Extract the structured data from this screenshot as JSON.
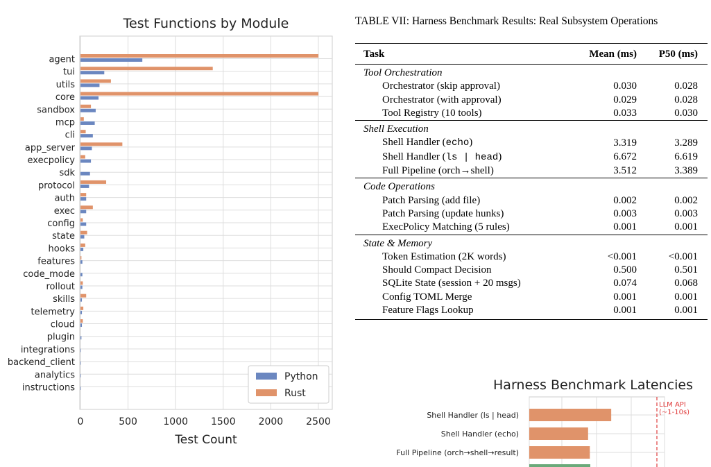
{
  "chart_data": [
    {
      "type": "bar",
      "title": "Test Functions by Module",
      "xlabel": "Test Count",
      "ylabel": "",
      "xlim": [
        0,
        2620
      ],
      "xticks": [
        0,
        500,
        1000,
        1500,
        2000,
        2500
      ],
      "grid": true,
      "legend_position": "bottom-right",
      "categories": [
        "agent",
        "tui",
        "utils",
        "core",
        "sandbox",
        "mcp",
        "cli",
        "app_server",
        "execpolicy",
        "sdk",
        "protocol",
        "auth",
        "exec",
        "config",
        "state",
        "hooks",
        "features",
        "code_mode",
        "rollout",
        "skills",
        "telemetry",
        "cloud",
        "plugin",
        "integrations",
        "backend_client",
        "analytics",
        "instructions"
      ],
      "series": [
        {
          "name": "Python",
          "color": "#6b87c0",
          "values": [
            650,
            250,
            200,
            190,
            160,
            150,
            130,
            120,
            110,
            100,
            90,
            60,
            60,
            60,
            40,
            30,
            20,
            20,
            20,
            15,
            15,
            15,
            10,
            5,
            5,
            5,
            5
          ]
        },
        {
          "name": "Rust",
          "color": "#e0936a",
          "values": [
            2500,
            1390,
            320,
            2500,
            110,
            35,
            55,
            440,
            50,
            0,
            270,
            60,
            130,
            25,
            70,
            50,
            10,
            0,
            25,
            60,
            30,
            25,
            0,
            0,
            0,
            0,
            0
          ]
        }
      ]
    },
    {
      "type": "bar",
      "title": "Harness Benchmark Latencies",
      "categories": [
        "Shell Handler (ls | head)",
        "Shell Handler (echo)",
        "Full Pipeline (orch→shell→result)"
      ],
      "series": [
        {
          "name": "",
          "color": "#e0936a",
          "values": [
            6.672,
            3.319,
            3.512
          ]
        }
      ],
      "annotation": "LLM API\n(~1-10s)",
      "annotation_color": "#e03c3c"
    }
  ],
  "table": {
    "caption": "TABLE VII: Harness Benchmark Results: Real Subsystem Operations",
    "headers": [
      "Task",
      "Mean (ms)",
      "P50 (ms)"
    ],
    "sections": [
      {
        "title": "Tool Orchestration",
        "rows": [
          {
            "name": "Orchestrator (skip approval)",
            "mean": "0.030",
            "p50": "0.028"
          },
          {
            "name": "Orchestrator (with approval)",
            "mean": "0.029",
            "p50": "0.028"
          },
          {
            "name": "Tool Registry (10 tools)",
            "mean": "0.033",
            "p50": "0.030"
          }
        ]
      },
      {
        "title": "Shell Execution",
        "rows": [
          {
            "name": "Shell Handler (",
            "code": "echo",
            "suffix": ")",
            "mean": "3.319",
            "p50": "3.289"
          },
          {
            "name": "Shell Handler (",
            "code": "ls | head",
            "suffix": ")",
            "mean": "6.672",
            "p50": "6.619"
          },
          {
            "name": "Full Pipeline (orch→shell)",
            "mean": "3.512",
            "p50": "3.389"
          }
        ]
      },
      {
        "title": "Code Operations",
        "rows": [
          {
            "name": "Patch Parsing (add file)",
            "mean": "0.002",
            "p50": "0.002"
          },
          {
            "name": "Patch Parsing (update hunks)",
            "mean": "0.003",
            "p50": "0.003"
          },
          {
            "name": "ExecPolicy Matching (5 rules)",
            "mean": "0.001",
            "p50": "0.001"
          }
        ]
      },
      {
        "title": "State & Memory",
        "rows": [
          {
            "name": "Token Estimation (2K words)",
            "mean": "<0.001",
            "p50": "<0.001"
          },
          {
            "name": "Should Compact Decision",
            "mean": "0.500",
            "p50": "0.501"
          },
          {
            "name": "SQLite State (session + 20 msgs)",
            "mean": "0.074",
            "p50": "0.068"
          },
          {
            "name": "Config TOML Merge",
            "mean": "0.001",
            "p50": "0.001"
          },
          {
            "name": "Feature Flags Lookup",
            "mean": "0.001",
            "p50": "0.001"
          }
        ]
      }
    ]
  }
}
